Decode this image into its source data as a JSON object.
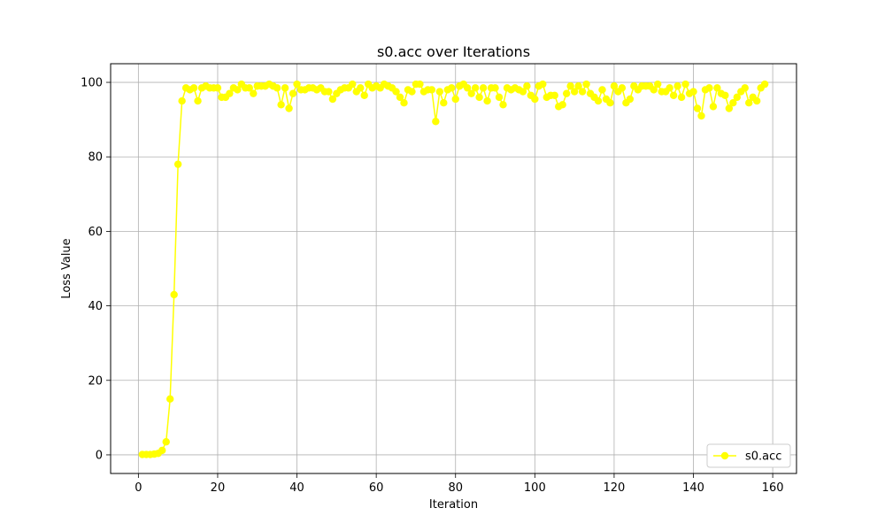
{
  "chart_data": {
    "type": "line",
    "title": "s0.acc over Iterations",
    "xlabel": "Iteration",
    "ylabel": "Loss Value",
    "xlim": [
      -7,
      166
    ],
    "ylim": [
      -5,
      105
    ],
    "xticks": [
      0,
      20,
      40,
      60,
      80,
      100,
      120,
      140,
      160
    ],
    "yticks": [
      0,
      20,
      40,
      60,
      80,
      100
    ],
    "grid": true,
    "legend_position": "bottom-right",
    "colors": {
      "series": "#ffff00",
      "grid": "#b0b0b0",
      "axis": "#000000"
    },
    "series": [
      {
        "name": "s0.acc",
        "marker": "circle",
        "x": [
          1,
          2,
          3,
          4,
          5,
          6,
          7,
          8,
          9,
          10,
          11,
          12,
          13,
          14,
          15,
          16,
          17,
          18,
          19,
          20,
          21,
          22,
          23,
          24,
          25,
          26,
          27,
          28,
          29,
          30,
          31,
          32,
          33,
          34,
          35,
          36,
          37,
          38,
          39,
          40,
          41,
          42,
          43,
          44,
          45,
          46,
          47,
          48,
          49,
          50,
          51,
          52,
          53,
          54,
          55,
          56,
          57,
          58,
          59,
          60,
          61,
          62,
          63,
          64,
          65,
          66,
          67,
          68,
          69,
          70,
          71,
          72,
          73,
          74,
          75,
          76,
          77,
          78,
          79,
          80,
          81,
          82,
          83,
          84,
          85,
          86,
          87,
          88,
          89,
          90,
          91,
          92,
          93,
          94,
          95,
          96,
          97,
          98,
          99,
          100,
          101,
          102,
          103,
          104,
          105,
          106,
          107,
          108,
          109,
          110,
          111,
          112,
          113,
          114,
          115,
          116,
          117,
          118,
          119,
          120,
          121,
          122,
          123,
          124,
          125,
          126,
          127,
          128,
          129,
          130,
          131,
          132,
          133,
          134,
          135,
          136,
          137,
          138,
          139,
          140,
          141,
          142,
          143,
          144,
          145,
          146,
          147,
          148,
          149,
          150,
          151,
          152,
          153,
          154,
          155,
          156,
          157,
          158
        ],
        "values": [
          0.1,
          0.1,
          0.1,
          0.2,
          0.4,
          1.2,
          3.5,
          15,
          43,
          78,
          95,
          98.5,
          98,
          98.5,
          95,
          98.5,
          99,
          98.5,
          98.5,
          98.5,
          96,
          96,
          97,
          98.5,
          98,
          99.5,
          98.5,
          98.5,
          97,
          99,
          99,
          99,
          99.5,
          99,
          98.5,
          94,
          98.5,
          93,
          97,
          99.5,
          98,
          98,
          98.5,
          98.5,
          98,
          98.5,
          97.5,
          97.5,
          95.5,
          97,
          98,
          98.5,
          98.5,
          99.5,
          97.5,
          98.5,
          96.5,
          99.5,
          98.5,
          99,
          98.5,
          99.5,
          99,
          98.5,
          97.5,
          96,
          94.5,
          98,
          97.5,
          99.5,
          99.5,
          97.5,
          98,
          98,
          89.5,
          97.5,
          94.5,
          98,
          98.5,
          95.5,
          99,
          99.5,
          98.5,
          97,
          98.5,
          96,
          98.5,
          95,
          98.5,
          98.5,
          96,
          94,
          98.5,
          98,
          98.5,
          98,
          97.5,
          99,
          96.5,
          95.5,
          99,
          99.5,
          96,
          96.5,
          96.5,
          93.5,
          94,
          97,
          99,
          97.5,
          99,
          97.5,
          99.5,
          97,
          96,
          95,
          98,
          95.5,
          94.5,
          99,
          97.5,
          98.5,
          94.5,
          95.5,
          99,
          98,
          99,
          99,
          99,
          98,
          99.5,
          97.5,
          97.5,
          98.5,
          96.5,
          99,
          96,
          99.5,
          97,
          97.5,
          93,
          91,
          98,
          98.5,
          93.5,
          98.5,
          97,
          96.5,
          93,
          94.5,
          96,
          97.5,
          98.5,
          94.5,
          96,
          95,
          98.5,
          99.5
        ]
      }
    ]
  }
}
